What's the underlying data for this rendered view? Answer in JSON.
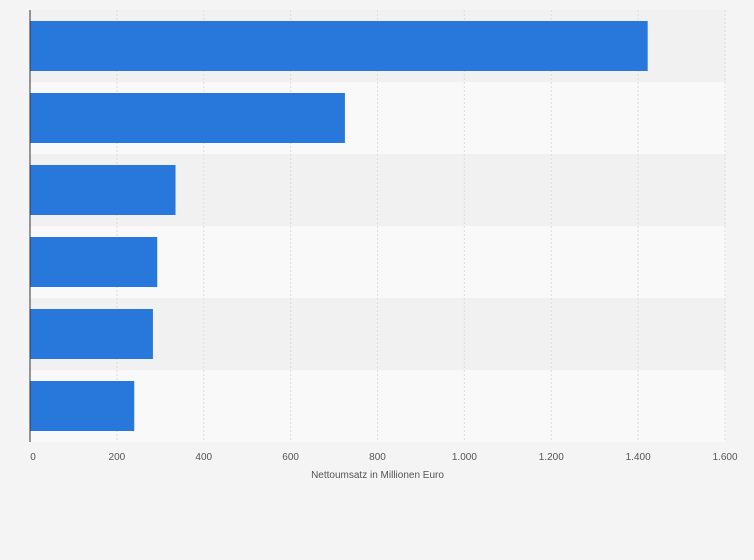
{
  "chart_data": {
    "type": "bar",
    "orientation": "horizontal",
    "categories": [
      "",
      "",
      "",
      "",
      "",
      ""
    ],
    "values": [
      1422,
      725,
      335,
      293,
      283,
      240
    ],
    "xlabel": "Nettoumsatz in Millionen Euro",
    "ylabel": "",
    "xlim": [
      0,
      1600
    ],
    "x_ticks": [
      0,
      200,
      400,
      600,
      800,
      1000,
      1200,
      1400,
      1600
    ],
    "x_tick_labels": [
      "0",
      "200",
      "400",
      "600",
      "800",
      "1.000",
      "1.200",
      "1.400",
      "1.600"
    ],
    "grid": true,
    "legend": "none",
    "bar_color": "#2878dc"
  },
  "colors": {
    "background": "#f4f4f4",
    "band_light": "#f9f9f9",
    "band_dark": "#f1f1f1",
    "grid": "#dddddd",
    "axis": "#333333",
    "text": "#555555"
  }
}
